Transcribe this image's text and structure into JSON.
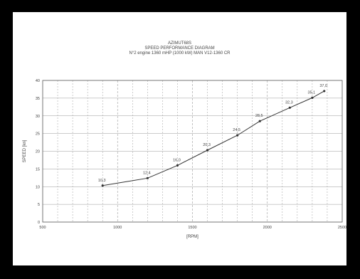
{
  "chart_data": {
    "type": "line",
    "title": "AZIMUT68S",
    "subtitle": "SPEED PERFORMANCE DIAGRAM",
    "subtitle2": "N°2 engine 1360 mHP (1000 kW) MAN V12-1360  CR",
    "xlabel": "[RPM]",
    "ylabel": "SPEED [kn]",
    "xlim": [
      500,
      2500
    ],
    "ylim": [
      0,
      40
    ],
    "xticks": [
      500,
      1000,
      1500,
      2000,
      2500
    ],
    "yticks": [
      0,
      5,
      10,
      15,
      20,
      25,
      30,
      35,
      40
    ],
    "x_minor_step": 100,
    "grid": true,
    "series": [
      {
        "points": [
          {
            "x": 900,
            "y": 10.3,
            "label": "10,3"
          },
          {
            "x": 1200,
            "y": 12.4,
            "label": "12,4"
          },
          {
            "x": 1400,
            "y": 16.0,
            "label": "16,0"
          },
          {
            "x": 1600,
            "y": 20.3,
            "label": "20,3"
          },
          {
            "x": 1800,
            "y": 24.5,
            "label": "24,5"
          },
          {
            "x": 1950,
            "y": 28.5,
            "label": "28,5"
          },
          {
            "x": 2150,
            "y": 32.3,
            "label": "32,3"
          },
          {
            "x": 2300,
            "y": 35.1,
            "label": "35,1"
          },
          {
            "x": 2380,
            "y": 37.0,
            "label": "37,0"
          }
        ]
      }
    ]
  },
  "colors": {
    "background": "#000000",
    "panel": "#ffffff",
    "line": "#333333",
    "grid": "#9a9a9a",
    "text": "#444444"
  }
}
